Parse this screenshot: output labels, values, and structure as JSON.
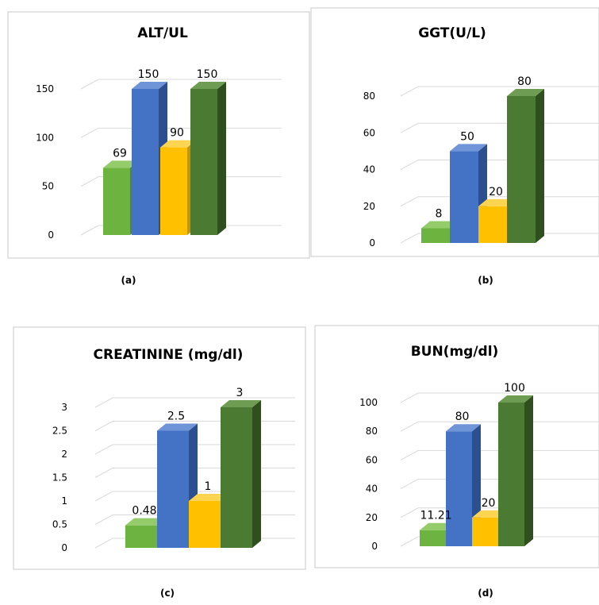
{
  "colors": {
    "green": {
      "front": "#6db33f",
      "top": "#93cc68",
      "side": "#4f8a2a"
    },
    "blue": {
      "front": "#4472c4",
      "top": "#6f95d8",
      "side": "#2c4f8f"
    },
    "yellow": {
      "front": "#ffc000",
      "top": "#ffd451",
      "side": "#c99400"
    },
    "darkgreen": {
      "front": "#4b7a32",
      "top": "#6d9c52",
      "side": "#2f4f1f"
    },
    "grid": "#d9d9d9",
    "frame": "#c8c8c8"
  },
  "chart_data": [
    {
      "type": "bar",
      "title": "ALT/UL",
      "caption": "(a)",
      "values": [
        69,
        150,
        90,
        150
      ],
      "labels": [
        "69",
        "150",
        "90",
        "150"
      ],
      "ylim": [
        0,
        150
      ],
      "ticks": [
        "0",
        "50",
        "100",
        "150"
      ],
      "tick_values": [
        0,
        50,
        100,
        150
      ],
      "bar_colors": [
        "green",
        "blue",
        "yellow",
        "darkgreen"
      ]
    },
    {
      "type": "bar",
      "title": "GGT(U/L)",
      "caption": "(b)",
      "values": [
        8,
        50,
        20,
        80
      ],
      "labels": [
        "8",
        "50",
        "20",
        "80"
      ],
      "ylim": [
        0,
        80
      ],
      "ticks": [
        "0",
        "20",
        "40",
        "60",
        "80"
      ],
      "tick_values": [
        0,
        20,
        40,
        60,
        80
      ],
      "bar_colors": [
        "green",
        "blue",
        "yellow",
        "darkgreen"
      ]
    },
    {
      "type": "bar",
      "title": "CREATININE (mg/dl)",
      "caption": "(c)",
      "values": [
        0.48,
        2.5,
        1,
        3
      ],
      "labels": [
        "0.48",
        "2.5",
        "1",
        "3"
      ],
      "ylim": [
        0,
        3
      ],
      "ticks": [
        "0",
        "0.5",
        "1",
        "1.5",
        "2",
        "2.5",
        "3"
      ],
      "tick_values": [
        0,
        0.5,
        1,
        1.5,
        2,
        2.5,
        3
      ],
      "bar_colors": [
        "green",
        "blue",
        "yellow",
        "darkgreen"
      ]
    },
    {
      "type": "bar",
      "title": "BUN(mg/dl)",
      "caption": "(d)",
      "values": [
        11.21,
        80,
        20,
        100
      ],
      "labels": [
        "11.21",
        "80",
        "20",
        "100"
      ],
      "ylim": [
        0,
        100
      ],
      "ticks": [
        "0",
        "20",
        "40",
        "60",
        "80",
        "100"
      ],
      "tick_values": [
        0,
        20,
        40,
        60,
        80,
        100
      ],
      "bar_colors": [
        "green",
        "blue",
        "yellow",
        "darkgreen"
      ]
    }
  ]
}
